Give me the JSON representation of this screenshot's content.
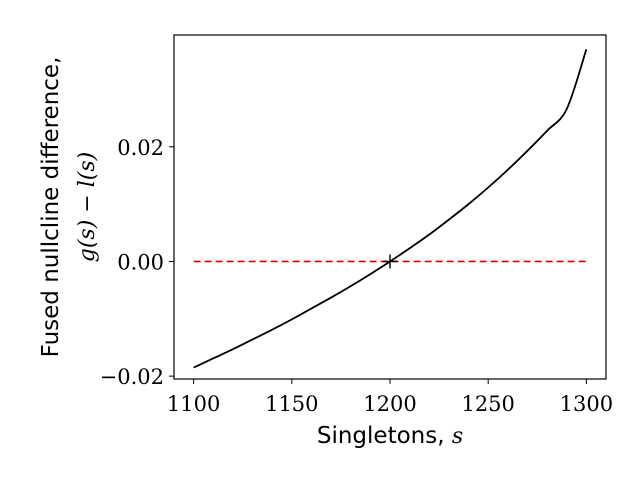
{
  "chart_data": {
    "type": "line",
    "xlabel": "Singletons, ",
    "xlabel_var": "s",
    "ylabel": "Fused nullcline difference,",
    "ylabel_expr": "g(s) − l(s)",
    "xlim": [
      1090,
      1310
    ],
    "ylim": [
      -0.0205,
      0.0395
    ],
    "xticks": [
      1100,
      1150,
      1200,
      1250,
      1300
    ],
    "yticks": [
      -0.02,
      0.0,
      0.02
    ],
    "ytick_labels": [
      "−0.02",
      "0.00",
      "0.02"
    ],
    "grid": false,
    "series": [
      {
        "kind": "curve",
        "color": "#000000",
        "style": "solid",
        "x": [
          1100,
          1110,
          1120,
          1130,
          1140,
          1150,
          1160,
          1170,
          1180,
          1190,
          1200,
          1210,
          1220,
          1230,
          1240,
          1250,
          1260,
          1270,
          1280,
          1290,
          1300
        ],
        "y": [
          -0.0185,
          -0.0169,
          -0.0153,
          -0.0136,
          -0.0119,
          -0.0101,
          -0.0082,
          -0.0063,
          -0.0043,
          -0.0022,
          0.0,
          0.0023,
          0.0047,
          0.0073,
          0.01,
          0.0129,
          0.016,
          0.0193,
          0.0228,
          0.0266,
          0.037
        ]
      },
      {
        "kind": "reference",
        "color": "#e00000",
        "style": "dashed",
        "x": [
          1100,
          1300
        ],
        "y": [
          0.0,
          0.0
        ]
      }
    ],
    "markers": [
      {
        "shape": "plus",
        "color": "#000000",
        "x": 1200,
        "y": 0.0
      }
    ]
  }
}
